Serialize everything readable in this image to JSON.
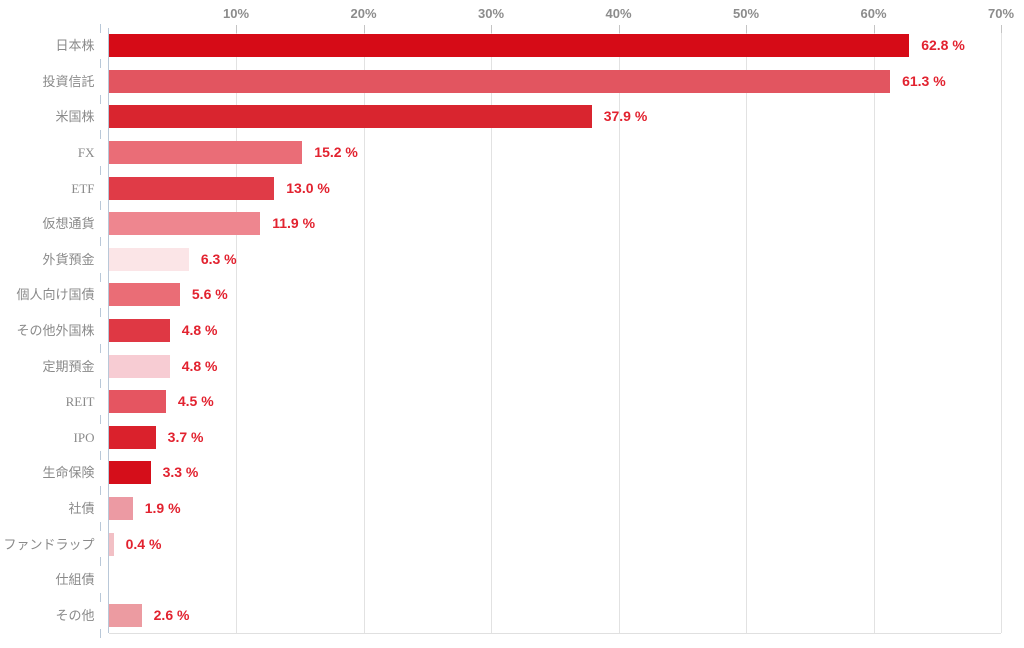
{
  "chart_data": {
    "type": "bar",
    "orientation": "horizontal",
    "title": "",
    "xlabel": "",
    "ylabel": "",
    "xlim": [
      0,
      70
    ],
    "grid": true,
    "x_ticks": [
      "10%",
      "20%",
      "30%",
      "40%",
      "50%",
      "60%",
      "70%"
    ],
    "x_tick_values": [
      10,
      20,
      30,
      40,
      50,
      60,
      70
    ],
    "categories": [
      "日本株",
      "投資信託",
      "米国株",
      "FX",
      "ETF",
      "仮想通貨",
      "外貨預金",
      "個人向け国債",
      "その他外国株",
      "定期預金",
      "REIT",
      "IPO",
      "生命保険",
      "社債",
      "ファンドラップ",
      "仕組債",
      "その他"
    ],
    "values": [
      62.8,
      61.3,
      37.9,
      15.2,
      13.0,
      11.9,
      6.3,
      5.6,
      4.8,
      4.8,
      4.5,
      3.7,
      3.3,
      1.9,
      0.4,
      0,
      2.6
    ],
    "value_labels": [
      "62.8 %",
      "61.3 %",
      "37.9 %",
      "15.2 %",
      "13.0 %",
      "11.9 %",
      "6.3 %",
      "5.6 %",
      "4.8 %",
      "4.8 %",
      "4.5 %",
      "3.7 %",
      "3.3 %",
      "1.9 %",
      "0.4 %",
      "",
      "2.6 %"
    ],
    "bar_colors": [
      "#d60b17",
      "#e25560",
      "#d9252f",
      "#ea6d77",
      "#e03b47",
      "#ee868f",
      "#fbe5e7",
      "#ea6d76",
      "#df3844",
      "#f7ccd3",
      "#e55561",
      "#da212c",
      "#d50e1a",
      "#ec9aa3",
      "#f2c0c5",
      "#ffffff",
      "#ec9ba1"
    ]
  },
  "style": {
    "value_label_color": "#e2222f",
    "x_tick_label_color": "#8c8c8c",
    "category_label_color": "#8a8a8a",
    "grid_color": "#e2e2e2",
    "top_tick_color": "#c4c4c4",
    "axis_line_color": "#b9c8d8",
    "bottom_line_color": "#e0e0e0",
    "background_color": "#ffffff"
  }
}
